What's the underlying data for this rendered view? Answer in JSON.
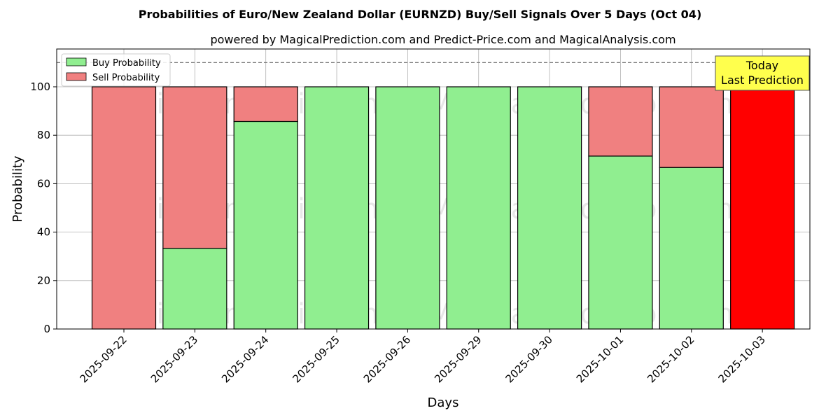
{
  "chart_data": {
    "type": "bar",
    "stacked": true,
    "title": "Probabilities of Euro/New Zealand Dollar (EURNZD) Buy/Sell Signals Over 5 Days (Oct 04)",
    "subtitle": "powered by MagicalPrediction.com and Predict-Price.com and MagicalAnalysis.com",
    "xlabel": "Days",
    "ylabel": "Probability",
    "ylim": [
      0,
      115
    ],
    "yticks": [
      0,
      20,
      40,
      60,
      80,
      100
    ],
    "grid": true,
    "legend_position": "top-left",
    "reference_line": 110,
    "categories": [
      "2025-09-22",
      "2025-09-23",
      "2025-09-24",
      "2025-09-25",
      "2025-09-26",
      "2025-09-29",
      "2025-09-30",
      "2025-10-01",
      "2025-10-02",
      "2025-10-03"
    ],
    "series": [
      {
        "name": "Buy Probability",
        "color": "#90ee90",
        "values": [
          0,
          33.3,
          85.7,
          100,
          100,
          100,
          100,
          71.4,
          66.7,
          0
        ]
      },
      {
        "name": "Sell Probability",
        "color": "#f08080",
        "values": [
          100,
          66.7,
          14.3,
          0,
          0,
          0,
          0,
          28.6,
          33.3,
          100
        ]
      }
    ],
    "highlight": {
      "index": 9,
      "color": "#ff0000"
    },
    "annotation": {
      "line1": "Today",
      "line2": "Last Prediction",
      "background": "#ffff4d"
    },
    "watermarks": [
      "MagicalAnalysis.com",
      "MagicalPrediction.com"
    ]
  }
}
